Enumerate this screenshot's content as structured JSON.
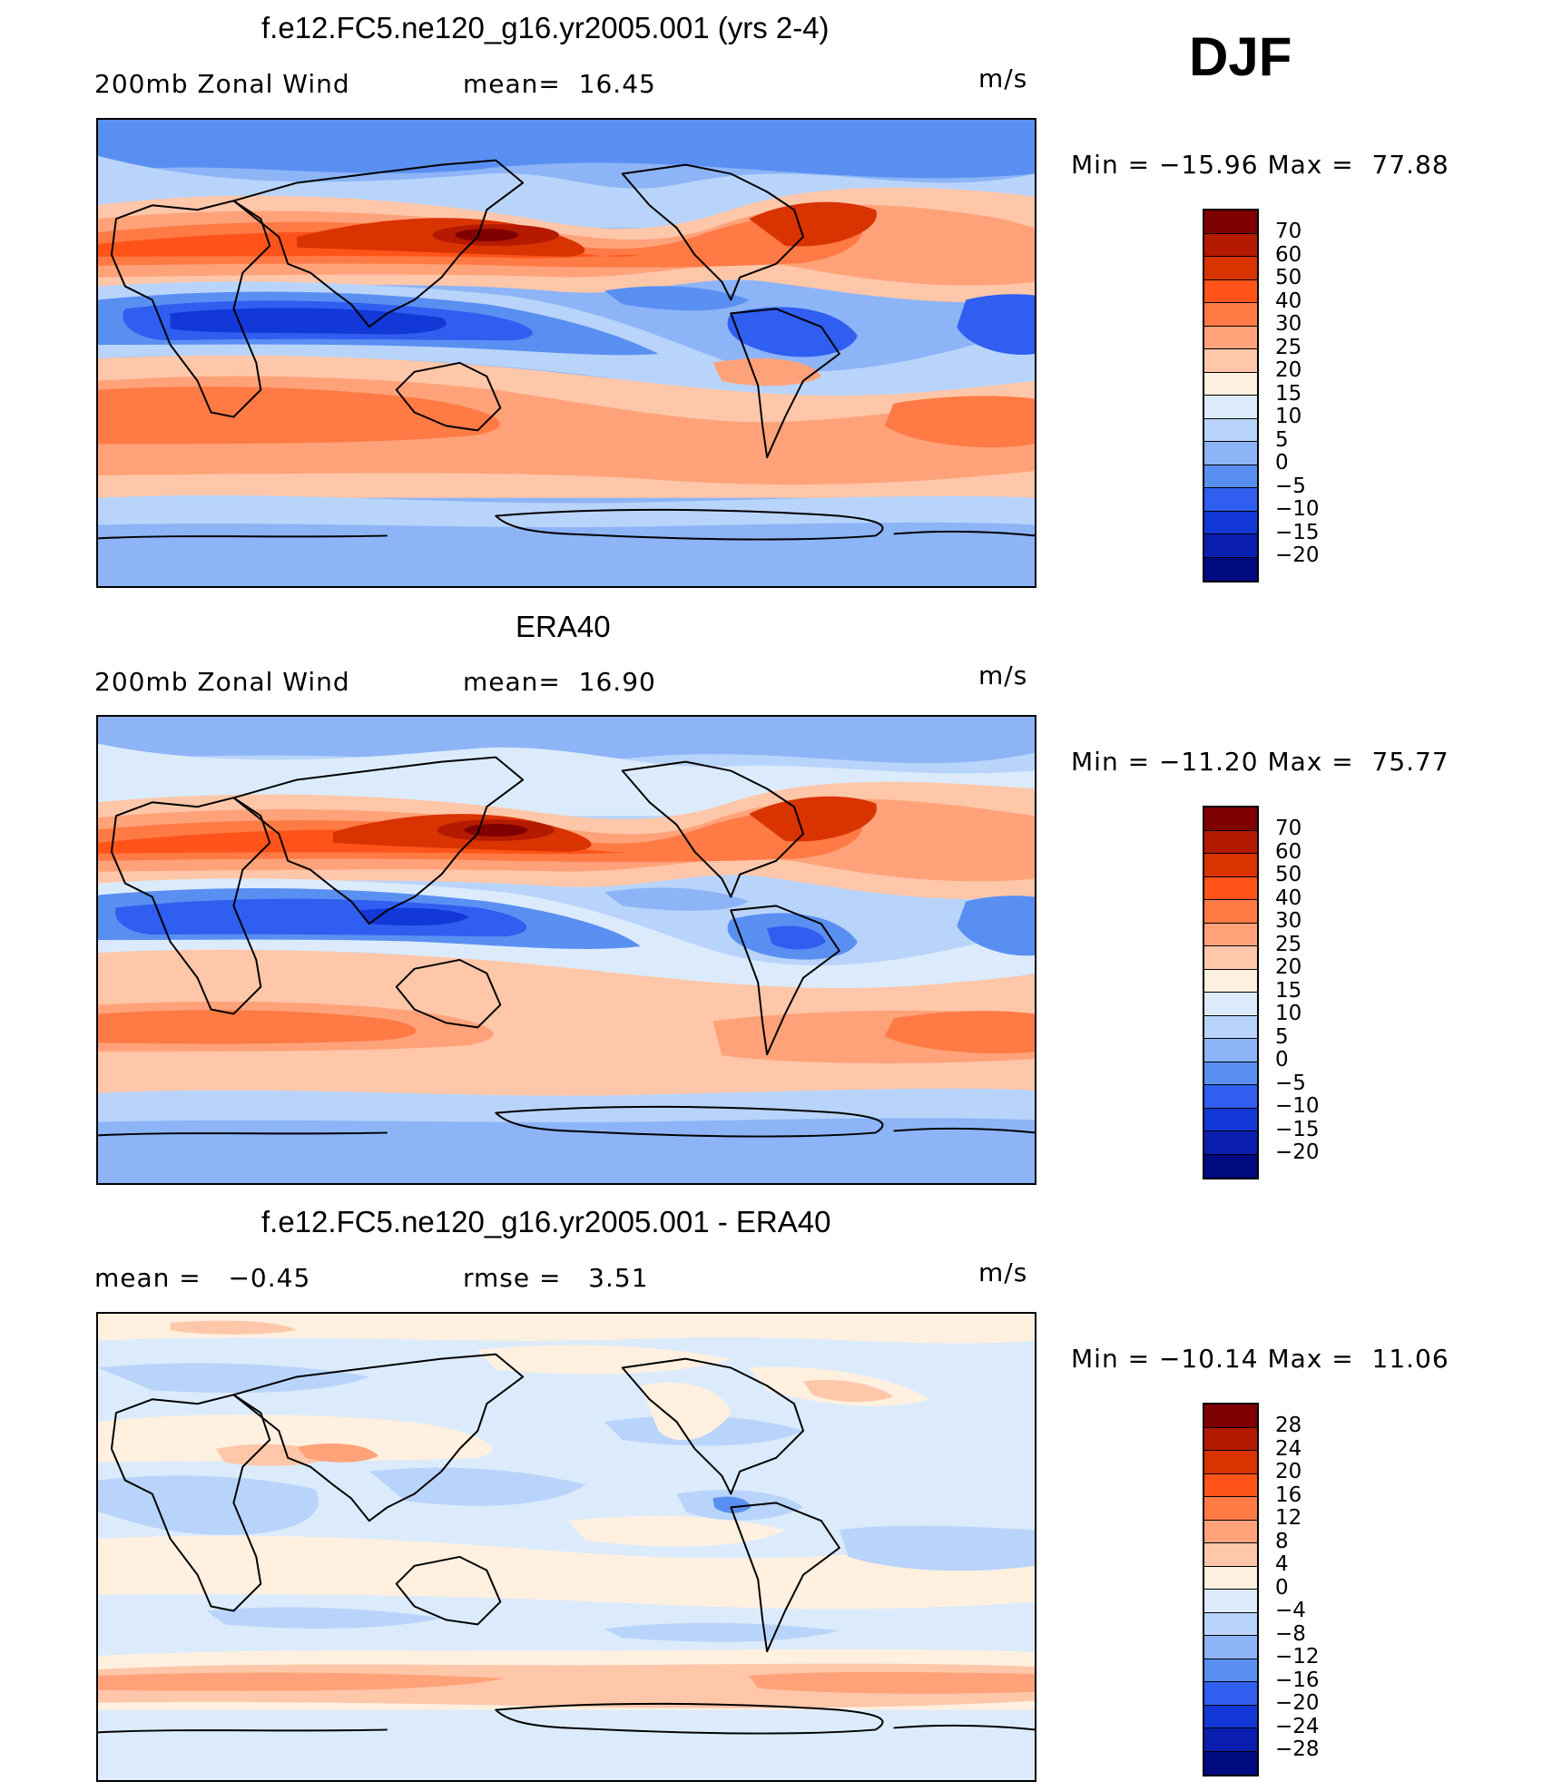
{
  "season": "DJF",
  "units": "m/s",
  "panels": [
    {
      "title": "f.e12.FC5.ne120_g16.yr2005.001 (yrs 2-4)",
      "left_label": "200mb Zonal Wind",
      "center_label": "mean=  16.45",
      "right_label": "m/s",
      "minmax": "Min = −15.96 Max =  77.88",
      "colorbar_labels": [
        "70",
        "60",
        "50",
        "40",
        "30",
        "25",
        "20",
        "15",
        "10",
        "5",
        "0",
        "−5",
        "−10",
        "−15",
        "−20"
      ]
    },
    {
      "title": "ERA40",
      "left_label": "200mb Zonal Wind",
      "center_label": "mean=  16.90",
      "right_label": "m/s",
      "minmax": "Min = −11.20 Max =  75.77",
      "colorbar_labels": [
        "70",
        "60",
        "50",
        "40",
        "30",
        "25",
        "20",
        "15",
        "10",
        "5",
        "0",
        "−5",
        "−10",
        "−15",
        "−20"
      ]
    },
    {
      "title": "f.e12.FC5.ne120_g16.yr2005.001 - ERA40",
      "left_label": "mean =   −0.45",
      "center_label": "rmse =   3.51",
      "right_label": "m/s",
      "minmax": "Min = −10.14 Max =  11.06",
      "colorbar_labels": [
        "28",
        "24",
        "20",
        "16",
        "12",
        "8",
        "4",
        "0",
        "−4",
        "−8",
        "−12",
        "−16",
        "−20",
        "−24",
        "−28"
      ]
    }
  ],
  "colors": {
    "scale": [
      "#7f0000",
      "#b31a00",
      "#d93300",
      "#ff5319",
      "#ff7a45",
      "#ffa27a",
      "#ffc7aa",
      "#fff0e0",
      "#dcebfb",
      "#b9d4fa",
      "#8cb4f7",
      "#5a8ff2",
      "#2f5ef0",
      "#1238d8",
      "#0a1fb0",
      "#000a80"
    ]
  }
}
